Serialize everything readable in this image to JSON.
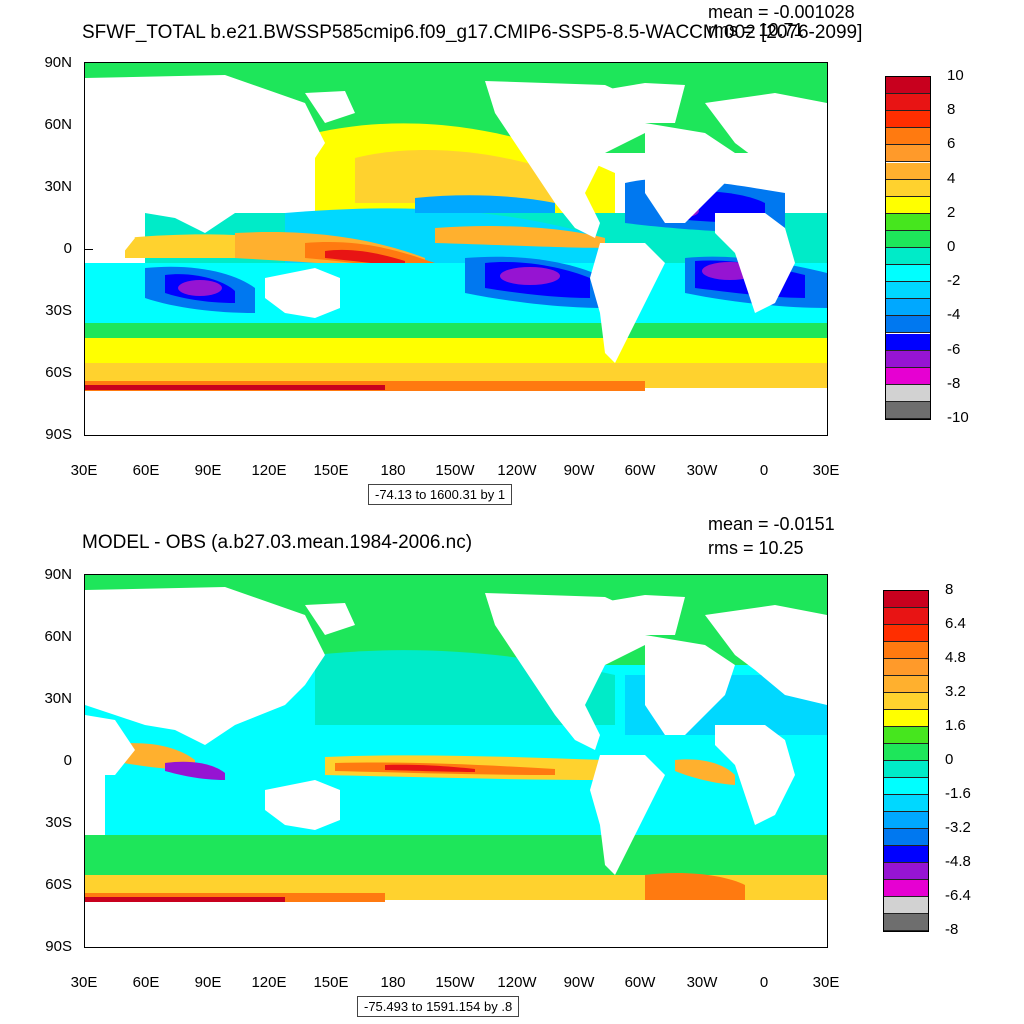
{
  "panels": [
    {
      "title": "SFWF_TOTAL b.e21.BWSSP585cmip6.f09_g17.CMIP6-SSP5-8.5-WACCM.002 [2076-2099]",
      "mean": "mean = -0.001028",
      "rms": "rms = 10.71",
      "range_note": "-74.13 to 1600.31 by 1",
      "lat_labels": [
        "90N",
        "60N",
        "30N",
        "0",
        "30S",
        "60S",
        "90S"
      ],
      "lon_labels": [
        "30E",
        "60E",
        "90E",
        "120E",
        "150E",
        "180",
        "150W",
        "120W",
        "90W",
        "60W",
        "30W",
        "0",
        "30E"
      ],
      "colorbar_labels": [
        "10",
        "8",
        "6",
        "4",
        "2",
        "0",
        "-2",
        "-4",
        "-6",
        "-8",
        "-10"
      ],
      "colors": [
        "#c8001e",
        "#e81414",
        "#ff2e00",
        "#ff7a10",
        "#ff9a2a",
        "#ffb02e",
        "#ffd22e",
        "#ffff00",
        "#46e61e",
        "#1ee65a",
        "#00ebc8",
        "#00ffff",
        "#00d8ff",
        "#00a8ff",
        "#0078f0",
        "#0000ff",
        "#9614d2",
        "#e600d2",
        "#d2d2d2",
        "#6e6e6e"
      ]
    },
    {
      "title": "MODEL - OBS (a.b27.03.mean.1984-2006.nc)",
      "mean": "mean = -0.0151",
      "rms": "rms = 10.25",
      "range_note": "-75.493 to 1591.154 by .8",
      "lat_labels": [
        "90N",
        "60N",
        "30N",
        "0",
        "30S",
        "60S",
        "90S"
      ],
      "lon_labels": [
        "30E",
        "60E",
        "90E",
        "120E",
        "150E",
        "180",
        "150W",
        "120W",
        "90W",
        "60W",
        "30W",
        "0",
        "30E"
      ],
      "colorbar_labels": [
        "8",
        "6.4",
        "4.8",
        "3.2",
        "1.6",
        "0",
        "-1.6",
        "-3.2",
        "-4.8",
        "-6.4",
        "-8"
      ],
      "colors": [
        "#c8001e",
        "#e81414",
        "#ff2e00",
        "#ff7a10",
        "#ff9a2a",
        "#ffb02e",
        "#ffd22e",
        "#ffff00",
        "#46e61e",
        "#1ee65a",
        "#00ebc8",
        "#00ffff",
        "#00d8ff",
        "#00a8ff",
        "#0078f0",
        "#0000ff",
        "#9614d2",
        "#e600d2",
        "#d2d2d2",
        "#6e6e6e"
      ]
    }
  ]
}
